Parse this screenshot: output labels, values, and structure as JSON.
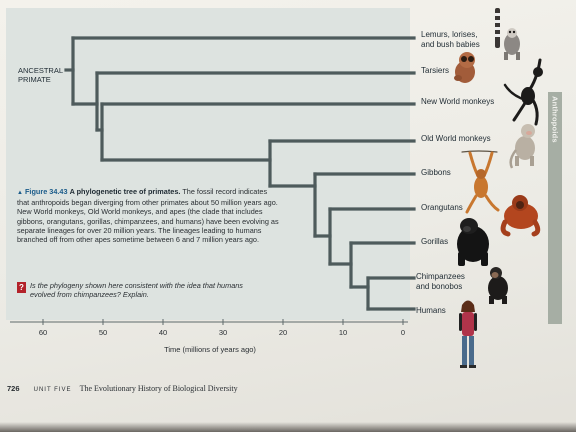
{
  "tree": {
    "ancestral_label": "ANCESTRAL\nPRIMATE",
    "taxa": [
      {
        "name": "Lemurs, lorises,\nand bush babies"
      },
      {
        "name": "Tarsiers"
      },
      {
        "name": "New World monkeys"
      },
      {
        "name": "Old World monkeys"
      },
      {
        "name": "Gibbons"
      },
      {
        "name": "Orangutans"
      },
      {
        "name": "Gorillas"
      },
      {
        "name": "Chimpanzees\nand bonobos"
      },
      {
        "name": "Humans"
      }
    ],
    "clade_bracket_label": "Anthropoids",
    "axis": {
      "title": "Time (millions of years ago)",
      "ticks": [
        "60",
        "50",
        "40",
        "30",
        "20",
        "10",
        "0"
      ]
    },
    "colors": {
      "branch": "#4e5b5c",
      "panel": "#dde3e0",
      "figure_accent": "#1b5c8a",
      "question_badge": "#b3222a"
    }
  },
  "caption": {
    "figure_number": "Figure 34.43",
    "title": "A phylogenetic tree of primates.",
    "body": "The fossil record indicates that anthropoids began diverging from other primates about 50 million years ago. New World monkeys, Old World monkeys, and apes (the clade that includes gibbons, orangutans, gorillas, chimpanzees, and humans) have been evolving as separate lineages for over 20 million years. The lineages leading to humans branched off from other apes sometime between 6 and 7 million years ago."
  },
  "question": {
    "badge": "?",
    "text": "Is the phylogeny shown here consistent with the idea that humans evolved from chimpanzees? Explain."
  },
  "footer": {
    "page_number": "726",
    "unit_label": "UNIT FIVE",
    "chapter_title": "The Evolutionary History of Biological Diversity"
  },
  "animal_icons": [
    "lemur-icon",
    "tarsier-icon",
    "spider-monkey-icon",
    "macaque-icon",
    "gibbon-icon",
    "orangutan-icon",
    "gorilla-icon",
    "chimpanzee-icon",
    "human-icon"
  ]
}
